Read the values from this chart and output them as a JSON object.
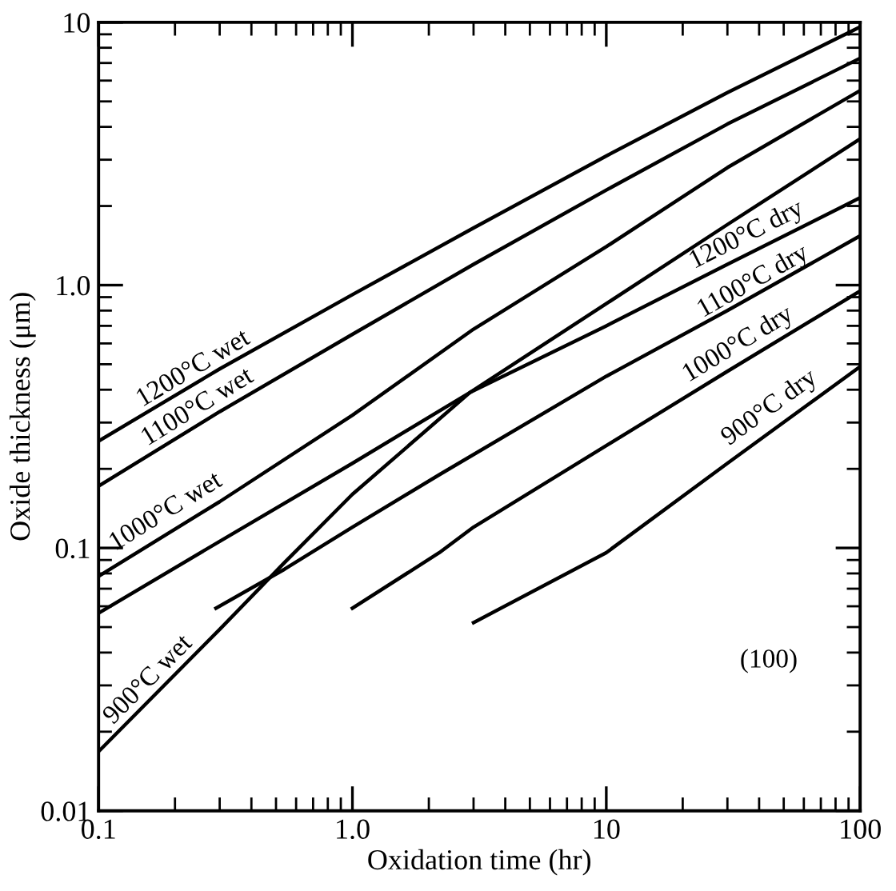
{
  "chart_data": {
    "type": "line",
    "xlabel": "Oxidation time (hr)",
    "ylabel": "Oxide thickness (μm)",
    "log": "xy",
    "xlim": [
      0.1,
      100
    ],
    "ylim": [
      0.01,
      10
    ],
    "xticks": [
      0.1,
      {
        "value": 1,
        "label": "1.0"
      },
      10,
      100
    ],
    "yticks": [
      0.01,
      0.1,
      {
        "value": 1,
        "label": "1.0"
      },
      10
    ],
    "grid": false,
    "legend": false,
    "marker": "none",
    "line_style": "solid",
    "series": [
      {
        "color": "#000000",
        "x": [
          0.1,
          0.3,
          1,
          3,
          10,
          30,
          100
        ],
        "values": [
          0.255,
          0.48,
          0.92,
          1.65,
          3.1,
          5.4,
          9.6
        ]
      },
      {
        "color": "#000000",
        "x": [
          0.1,
          0.3,
          1,
          3,
          10,
          30,
          100
        ],
        "values": [
          0.172,
          0.33,
          0.65,
          1.2,
          2.3,
          4.1,
          7.3
        ]
      },
      {
        "color": "#000000",
        "x": [
          0.1,
          0.3,
          1,
          3,
          10,
          30,
          100
        ],
        "values": [
          0.078,
          0.15,
          0.32,
          0.68,
          1.4,
          2.8,
          5.5
        ]
      },
      {
        "color": "#000000",
        "x": [
          0.1,
          0.3,
          0.54,
          1,
          2.9,
          10,
          30,
          100
        ],
        "values": [
          0.0168,
          0.049,
          0.088,
          0.16,
          0.39,
          0.85,
          1.7,
          3.6
        ]
      },
      {
        "color": "#000000",
        "x": [
          0.1,
          0.3,
          1,
          2.9,
          10,
          30,
          100
        ],
        "values": [
          0.0565,
          0.106,
          0.21,
          0.39,
          0.7,
          1.2,
          2.15
        ]
      },
      {
        "color": "#000000",
        "x": [
          0.29,
          0.54,
          1,
          2.2,
          10,
          30,
          100
        ],
        "values": [
          0.059,
          0.083,
          0.12,
          0.19,
          0.45,
          0.8,
          1.54
        ]
      },
      {
        "color": "#000000",
        "x": [
          1,
          2.2,
          3,
          10,
          30,
          100
        ],
        "values": [
          0.059,
          0.096,
          0.12,
          0.245,
          0.47,
          0.95
        ]
      },
      {
        "color": "#000000",
        "x": [
          3,
          10,
          30,
          100
        ],
        "values": [
          0.052,
          0.096,
          0.21,
          0.49
        ]
      }
    ],
    "annotations": [
      {
        "text": "1200°C wet",
        "x": 0.25,
        "y": 0.42
      },
      {
        "text": "1100°C wet",
        "x": 0.26,
        "y": 0.3
      },
      {
        "text": "1000°C wet",
        "x": 0.195,
        "y": 0.12
      },
      {
        "text": "900°C wet",
        "x": 0.17,
        "y": 0.028
      },
      {
        "text": "1200°C dry",
        "x": 37.5,
        "y": 1.35
      },
      {
        "text": "1100°C dry",
        "x": 40,
        "y": 0.9
      },
      {
        "text": "1000°C dry",
        "x": 35,
        "y": 0.52
      },
      {
        "text": "900°C dry",
        "x": 47,
        "y": 0.3
      },
      "(100)"
    ]
  }
}
